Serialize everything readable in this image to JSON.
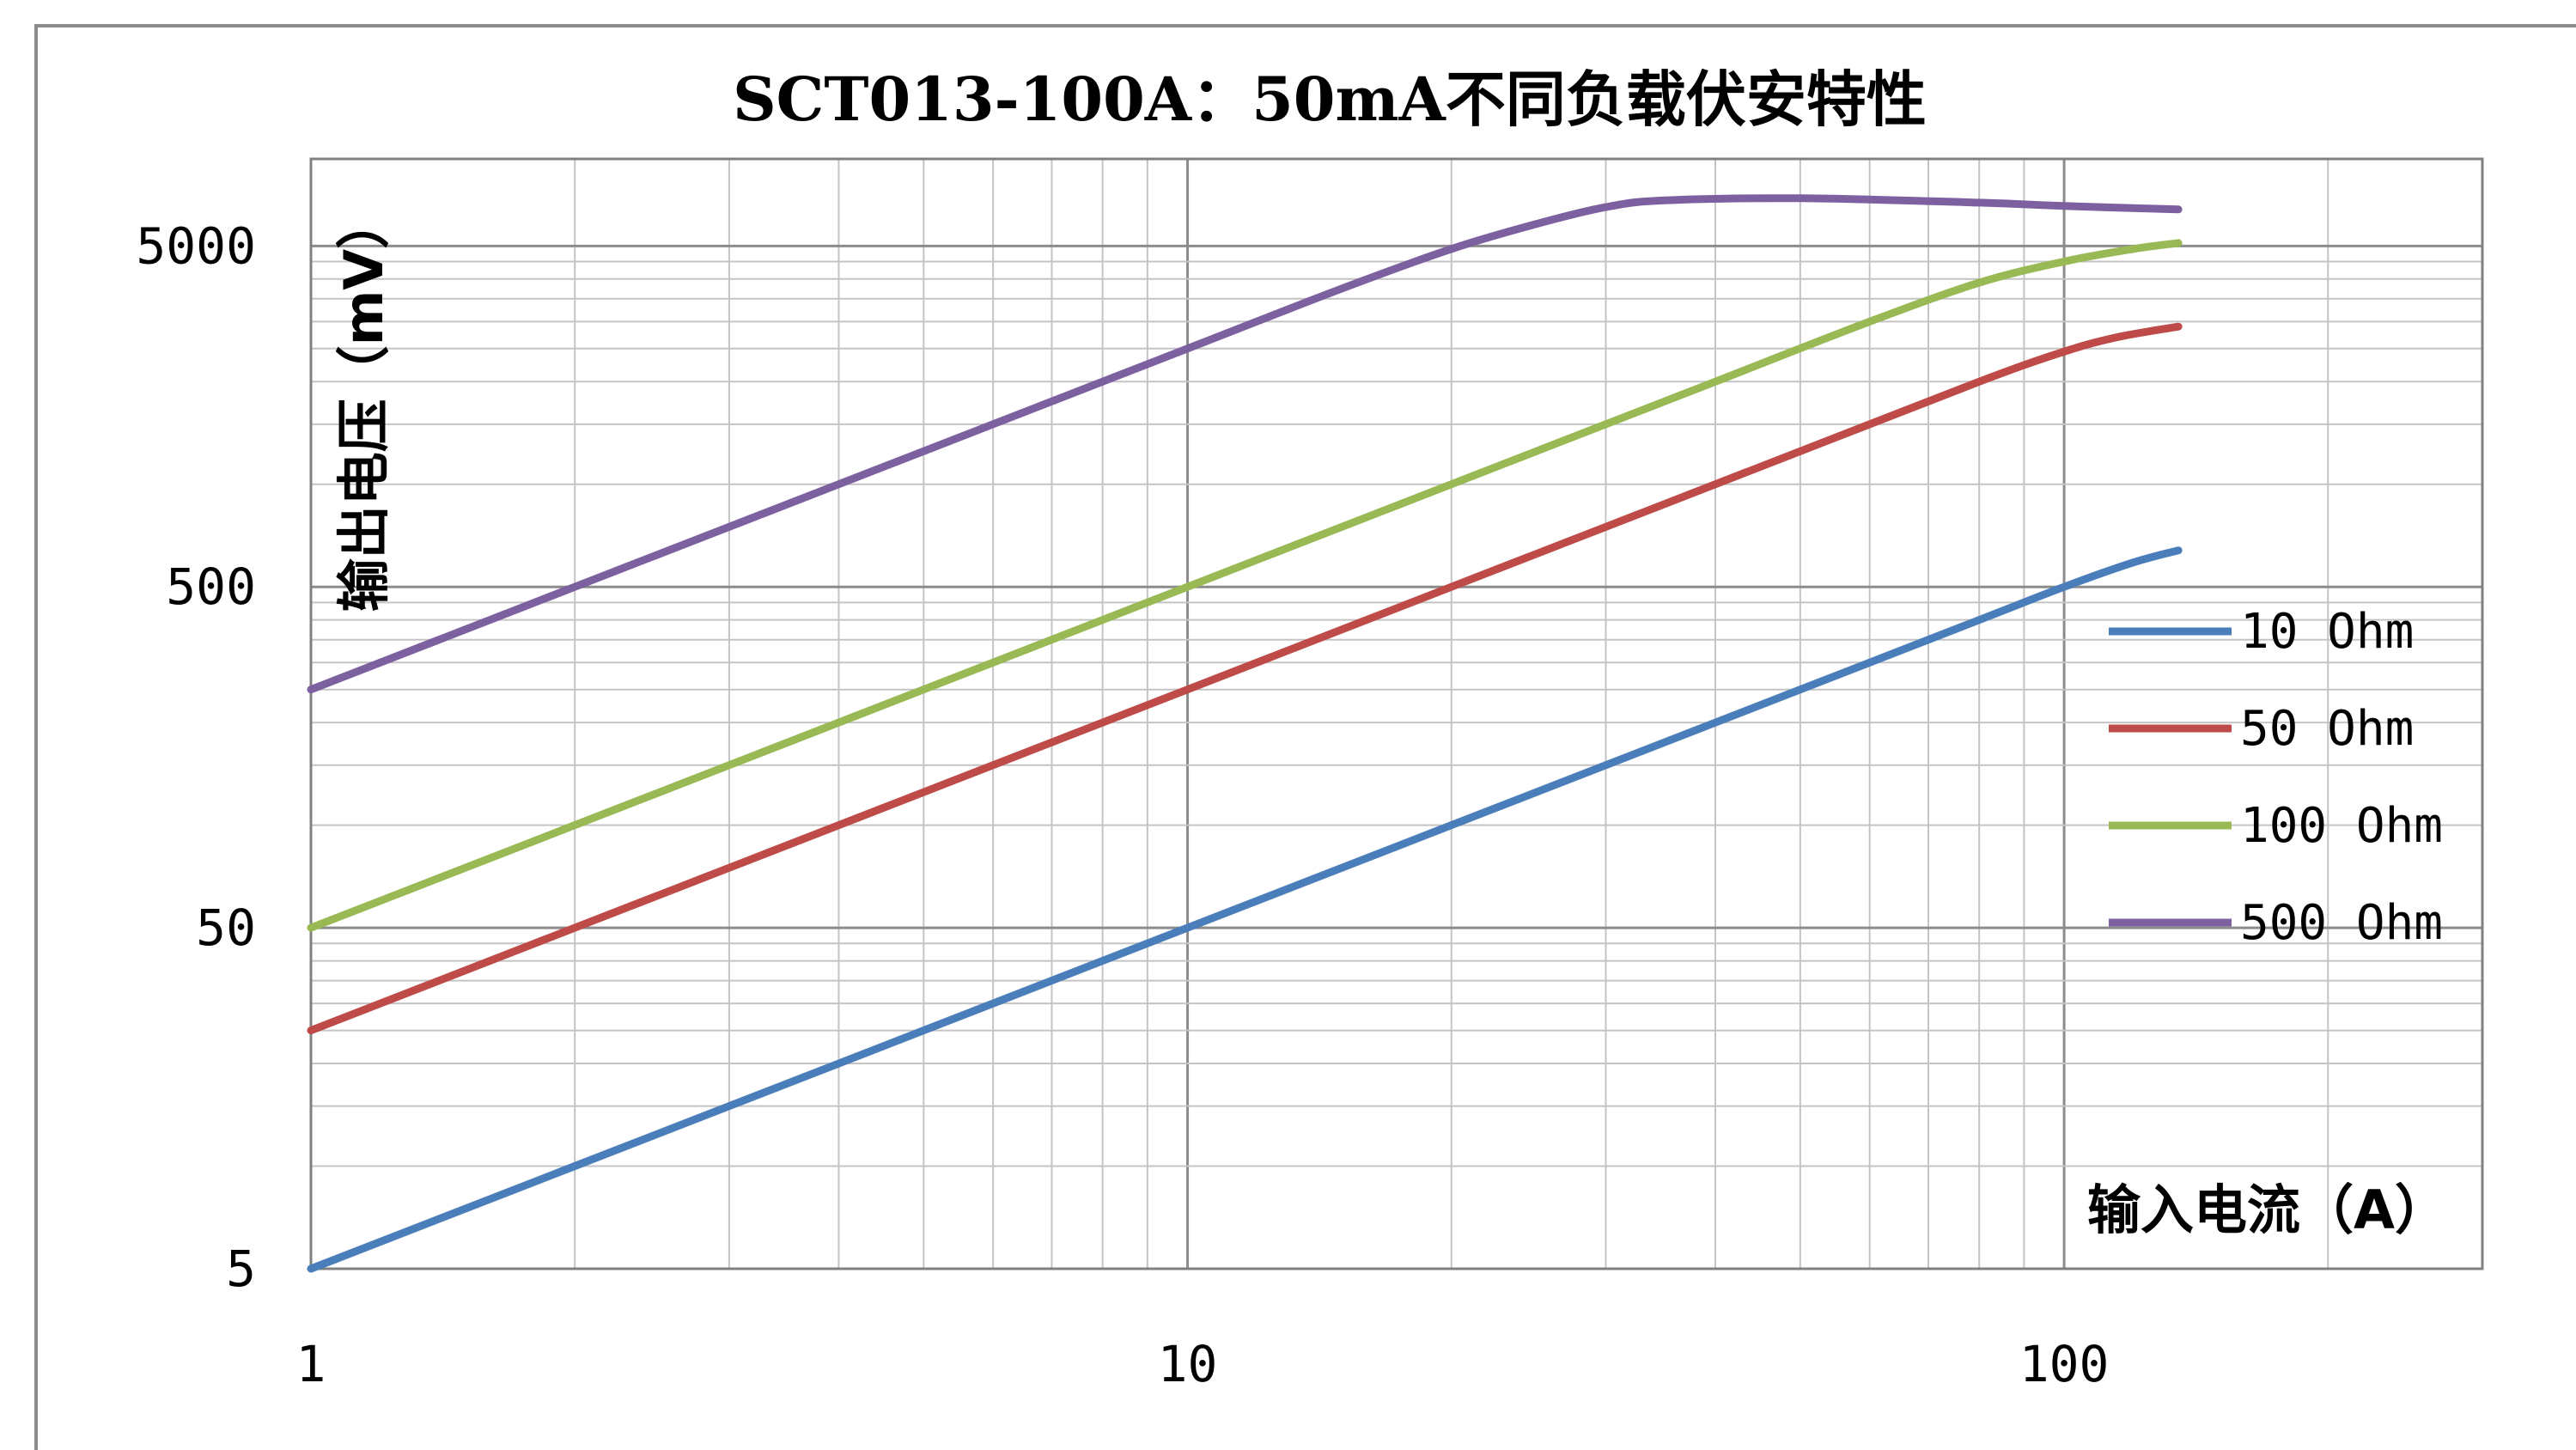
{
  "chart_data": {
    "type": "line",
    "title": "SCT013-100A：50mA不同负载伏安特性",
    "xlabel": "输入电流（A）",
    "ylabel": "输出电压（mV）",
    "x_scale": "log",
    "y_scale": "log",
    "xlim": [
      1,
      300
    ],
    "ylim": [
      5,
      9000
    ],
    "x_ticks": [
      "1",
      "10",
      "100"
    ],
    "y_ticks": [
      "5",
      "50",
      "500",
      "5000"
    ],
    "grid": true,
    "legend_position": "right",
    "series": [
      {
        "name": "10 Ohm",
        "color": "#4a7ebb",
        "points": [
          [
            1,
            5
          ],
          [
            2,
            10
          ],
          [
            5,
            25
          ],
          [
            10,
            50
          ],
          [
            20,
            100
          ],
          [
            50,
            250
          ],
          [
            80,
            400
          ],
          [
            100,
            500
          ],
          [
            120,
            590
          ],
          [
            135,
            640
          ]
        ]
      },
      {
        "name": "50 Ohm",
        "color": "#be4b48",
        "points": [
          [
            1,
            25
          ],
          [
            2,
            50
          ],
          [
            5,
            125
          ],
          [
            10,
            250
          ],
          [
            20,
            500
          ],
          [
            50,
            1250
          ],
          [
            80,
            2000
          ],
          [
            100,
            2450
          ],
          [
            115,
            2700
          ],
          [
            135,
            2900
          ]
        ]
      },
      {
        "name": "100 Ohm",
        "color": "#98b954",
        "points": [
          [
            1,
            50
          ],
          [
            2,
            100
          ],
          [
            5,
            250
          ],
          [
            10,
            500
          ],
          [
            20,
            1000
          ],
          [
            40,
            2000
          ],
          [
            60,
            3000
          ],
          [
            80,
            3900
          ],
          [
            100,
            4500
          ],
          [
            120,
            4900
          ],
          [
            135,
            5100
          ]
        ]
      },
      {
        "name": "500 Ohm",
        "color": "#7d60a0",
        "points": [
          [
            1,
            250
          ],
          [
            2,
            500
          ],
          [
            5,
            1250
          ],
          [
            10,
            2500
          ],
          [
            15,
            3750
          ],
          [
            20,
            4900
          ],
          [
            25,
            5800
          ],
          [
            30,
            6500
          ],
          [
            35,
            6800
          ],
          [
            50,
            6900
          ],
          [
            80,
            6700
          ],
          [
            100,
            6550
          ],
          [
            135,
            6400
          ]
        ]
      }
    ]
  }
}
